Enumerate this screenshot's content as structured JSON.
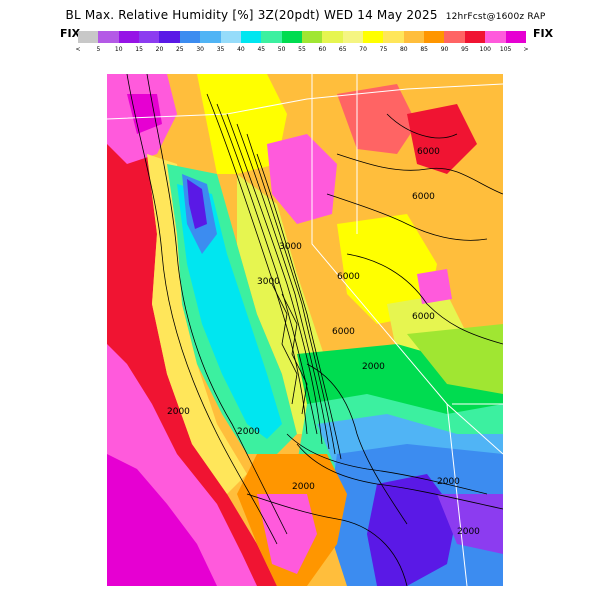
{
  "header": {
    "title": "BL Max. Relative Humidity [%] 3Z(20pdt) WED 14 May 2025",
    "subtitle": "12hrFcst@1600z RAP",
    "fix_left": "FIX",
    "fix_right": "FIX"
  },
  "legend": {
    "ticks": [
      "<",
      "5",
      "10",
      "15",
      "20",
      "25",
      "30",
      "35",
      "40",
      "45",
      "50",
      "55",
      "60",
      "65",
      "70",
      "75",
      "80",
      "85",
      "90",
      "95",
      "100",
      "105",
      ">"
    ],
    "colors": [
      "#c8c8c8",
      "#b45ae6",
      "#9614e6",
      "#8c3cf0",
      "#5a19e6",
      "#3c8cf0",
      "#50b4f5",
      "#96dcfa",
      "#00e6f0",
      "#3cf0a0",
      "#00dc50",
      "#a0e632",
      "#e6f550",
      "#f5f582",
      "#ffff00",
      "#ffe65a",
      "#ffbe3c",
      "#ff9600",
      "#ff6464",
      "#f01432",
      "#ff5adc",
      "#e600d2"
    ]
  },
  "map": {
    "contour_labels": [
      "6000",
      "6000",
      "6000",
      "6000",
      "6000",
      "3000",
      "3000",
      "2000",
      "2000",
      "2000",
      "2000",
      "2000",
      "2000"
    ]
  }
}
